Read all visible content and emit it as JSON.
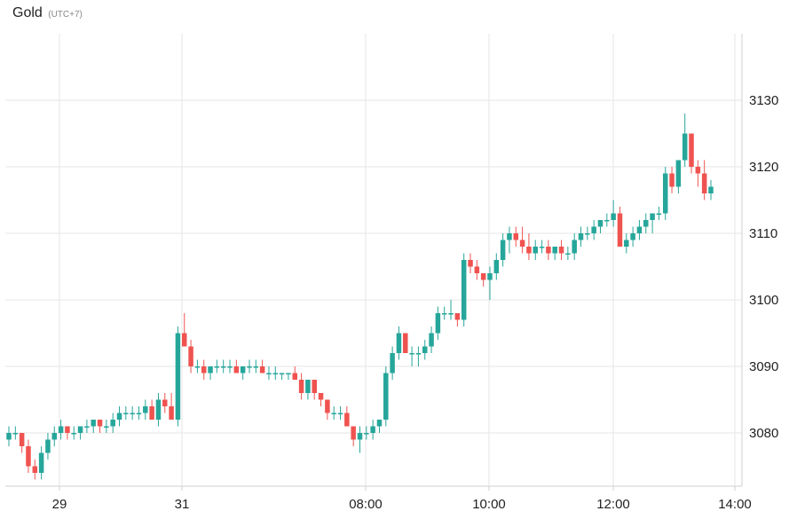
{
  "header": {
    "title": "Gold",
    "timezone": "(UTC+7)"
  },
  "colors": {
    "up": "#26a69a",
    "down": "#ef5350",
    "grid": "#e6e6e6",
    "axis": "#cfcfcf",
    "text": "#222222"
  },
  "chart_data": {
    "type": "candlestick",
    "title": "Gold",
    "ylim": [
      3072,
      3140
    ],
    "y_ticks": [
      3080,
      3090,
      3100,
      3110,
      3120,
      3130
    ],
    "x_ticks": [
      "29",
      "31",
      "08:00",
      "10:00",
      "12:00",
      "14:00"
    ],
    "grid": true,
    "last_price": 3117.5,
    "series": [
      {
        "values": [
          [
            3079,
            3081,
            3078,
            3080
          ],
          [
            3080,
            3081,
            3079,
            3080
          ],
          [
            3080,
            3080,
            3077,
            3078
          ],
          [
            3078,
            3079,
            3074,
            3075
          ],
          [
            3075,
            3076,
            3073,
            3074
          ],
          [
            3074,
            3078,
            3073,
            3077
          ],
          [
            3077,
            3080,
            3076,
            3079
          ],
          [
            3079,
            3081,
            3078,
            3080
          ],
          [
            3080,
            3082,
            3079,
            3081
          ],
          [
            3081,
            3081,
            3079,
            3080
          ],
          [
            3080,
            3081,
            3079,
            3080
          ],
          [
            3080,
            3081,
            3079,
            3081
          ],
          [
            3081,
            3082,
            3080,
            3081
          ],
          [
            3081,
            3082,
            3080,
            3082
          ],
          [
            3082,
            3082,
            3080,
            3081
          ],
          [
            3081,
            3082,
            3080,
            3081
          ],
          [
            3081,
            3083,
            3080,
            3082
          ],
          [
            3082,
            3084,
            3081,
            3083
          ],
          [
            3083,
            3084,
            3082,
            3083
          ],
          [
            3083,
            3084,
            3082,
            3083
          ],
          [
            3083,
            3084,
            3082,
            3083
          ],
          [
            3083,
            3085,
            3082,
            3084
          ],
          [
            3084,
            3085,
            3082,
            3082
          ],
          [
            3082,
            3086,
            3081,
            3085
          ],
          [
            3085,
            3086,
            3083,
            3084
          ],
          [
            3084,
            3086,
            3082,
            3082
          ],
          [
            3082,
            3096,
            3081,
            3095
          ],
          [
            3095,
            3098,
            3093,
            3093
          ],
          [
            3093,
            3094,
            3089,
            3090
          ],
          [
            3090,
            3091,
            3089,
            3090
          ],
          [
            3090,
            3091,
            3088,
            3089
          ],
          [
            3089,
            3090,
            3088,
            3090
          ],
          [
            3090,
            3091,
            3089,
            3090
          ],
          [
            3090,
            3091,
            3089,
            3090
          ],
          [
            3090,
            3091,
            3089,
            3090
          ],
          [
            3090,
            3091,
            3089,
            3089
          ],
          [
            3089,
            3090,
            3088,
            3090
          ],
          [
            3090,
            3091,
            3089,
            3090
          ],
          [
            3090,
            3091,
            3089,
            3090
          ],
          [
            3090,
            3091,
            3089,
            3089
          ],
          [
            3089,
            3090,
            3088,
            3089
          ],
          [
            3089,
            3090,
            3088,
            3089
          ],
          [
            3089,
            3089,
            3088,
            3089
          ],
          [
            3089,
            3089,
            3088,
            3089
          ],
          [
            3089,
            3090,
            3088,
            3088
          ],
          [
            3088,
            3089,
            3085,
            3086
          ],
          [
            3086,
            3088,
            3085,
            3088
          ],
          [
            3088,
            3088,
            3085,
            3086
          ],
          [
            3086,
            3086,
            3084,
            3085
          ],
          [
            3085,
            3085,
            3082,
            3083
          ],
          [
            3083,
            3084,
            3082,
            3083
          ],
          [
            3083,
            3084,
            3082,
            3083
          ],
          [
            3083,
            3084,
            3081,
            3081
          ],
          [
            3081,
            3081,
            3078,
            3079
          ],
          [
            3079,
            3081,
            3077,
            3080
          ],
          [
            3080,
            3081,
            3079,
            3080
          ],
          [
            3080,
            3082,
            3079,
            3081
          ],
          [
            3081,
            3082,
            3080,
            3082
          ],
          [
            3082,
            3090,
            3081,
            3089
          ],
          [
            3089,
            3093,
            3088,
            3092
          ],
          [
            3092,
            3096,
            3091,
            3095
          ],
          [
            3095,
            3095,
            3092,
            3092
          ],
          [
            3092,
            3093,
            3090,
            3092
          ],
          [
            3092,
            3093,
            3090,
            3092
          ],
          [
            3092,
            3094,
            3091,
            3093
          ],
          [
            3093,
            3096,
            3092,
            3095
          ],
          [
            3095,
            3099,
            3094,
            3098
          ],
          [
            3098,
            3099,
            3097,
            3098
          ],
          [
            3098,
            3100,
            3097,
            3098
          ],
          [
            3098,
            3098,
            3096,
            3097
          ],
          [
            3097,
            3107,
            3096,
            3106
          ],
          [
            3106,
            3107,
            3104,
            3105
          ],
          [
            3105,
            3106,
            3103,
            3104
          ],
          [
            3104,
            3104,
            3102,
            3103
          ],
          [
            3103,
            3105,
            3100,
            3104
          ],
          [
            3104,
            3107,
            3103,
            3106
          ],
          [
            3106,
            3110,
            3105,
            3109
          ],
          [
            3109,
            3111,
            3107,
            3110
          ],
          [
            3110,
            3111,
            3108,
            3109
          ],
          [
            3109,
            3111,
            3107,
            3108
          ],
          [
            3108,
            3110,
            3106,
            3107
          ],
          [
            3107,
            3109,
            3106,
            3108
          ],
          [
            3108,
            3109,
            3107,
            3108
          ],
          [
            3108,
            3109,
            3106,
            3107
          ],
          [
            3107,
            3108,
            3106,
            3108
          ],
          [
            3108,
            3109,
            3106,
            3107
          ],
          [
            3107,
            3108,
            3106,
            3107
          ],
          [
            3107,
            3110,
            3106,
            3109
          ],
          [
            3109,
            3111,
            3108,
            3110
          ],
          [
            3110,
            3111,
            3109,
            3110
          ],
          [
            3110,
            3112,
            3109,
            3111
          ],
          [
            3111,
            3112,
            3110,
            3112
          ],
          [
            3112,
            3113,
            3111,
            3112
          ],
          [
            3112,
            3115,
            3111,
            3113
          ],
          [
            3113,
            3114,
            3108,
            3108
          ],
          [
            3108,
            3110,
            3107,
            3109
          ],
          [
            3109,
            3111,
            3108,
            3110
          ],
          [
            3110,
            3112,
            3109,
            3111
          ],
          [
            3111,
            3113,
            3110,
            3112
          ],
          [
            3112,
            3113,
            3110,
            3113
          ],
          [
            3113,
            3114,
            3112,
            3113
          ],
          [
            3113,
            3120,
            3112,
            3119
          ],
          [
            3119,
            3120,
            3116,
            3117
          ],
          [
            3117,
            3121,
            3116,
            3121
          ],
          [
            3121,
            3128,
            3120,
            3125
          ],
          [
            3125,
            3125,
            3119,
            3120
          ],
          [
            3120,
            3121,
            3117,
            3119
          ],
          [
            3119,
            3121,
            3115,
            3116
          ],
          [
            3116,
            3118,
            3115,
            3117
          ]
        ]
      }
    ]
  }
}
